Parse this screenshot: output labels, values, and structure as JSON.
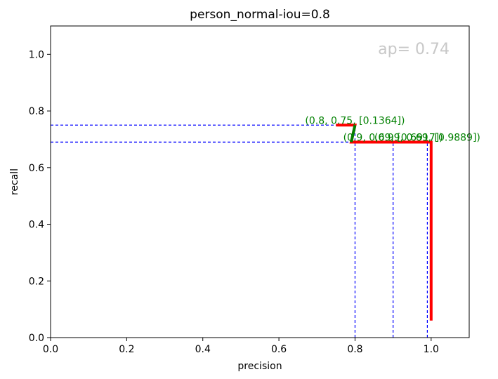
{
  "chart_data": {
    "type": "line",
    "title": "person_normal-iou=0.8",
    "xlabel": "precision",
    "ylabel": "recall",
    "xlim": [
      0.0,
      1.1
    ],
    "ylim": [
      0.0,
      1.1
    ],
    "xticks": [
      "0.0",
      "0.2",
      "0.4",
      "0.6",
      "0.8",
      "1.0"
    ],
    "yticks": [
      "0.0",
      "0.2",
      "0.4",
      "0.6",
      "0.8",
      "1.0"
    ],
    "xtick_values": [
      0.0,
      0.2,
      0.4,
      0.6,
      0.8,
      1.0
    ],
    "ytick_values": [
      0.0,
      0.2,
      0.4,
      0.6,
      0.8,
      1.0
    ],
    "grid": false,
    "ap_label": "ap= 0.74",
    "pr_curve": {
      "color": "#ff0000",
      "x": [
        1.0,
        1.0,
        0.9,
        0.79,
        0.8,
        0.75
      ],
      "y": [
        0.06,
        0.69,
        0.69,
        0.69,
        0.75,
        0.75
      ]
    },
    "pr_highlight": {
      "color": "#008000",
      "x": [
        0.79,
        0.8
      ],
      "y": [
        0.69,
        0.75
      ]
    },
    "guide_color": "#0000ff",
    "annotation_color": "#008000",
    "annotations": [
      {
        "x": 0.8,
        "y": 0.75,
        "text": "(0.8, 0.75, [0.1364])"
      },
      {
        "x": 0.9,
        "y": 0.69,
        "text": "(0.9, 0.69, [0.6917])"
      },
      {
        "x": 0.99,
        "y": 0.69,
        "text": "(0.99, 0.69, [0.9889])"
      }
    ]
  }
}
